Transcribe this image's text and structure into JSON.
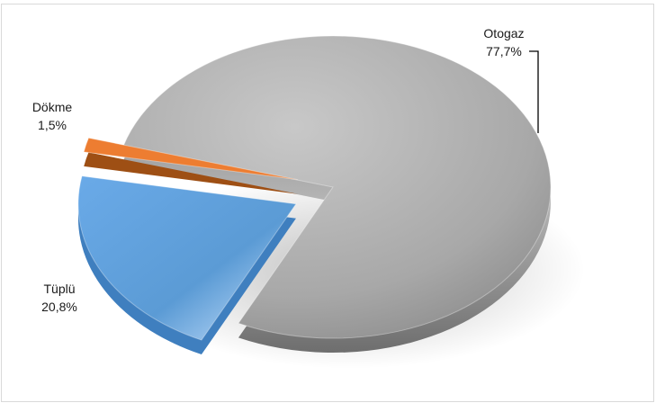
{
  "chart_data": {
    "type": "pie",
    "style": "3d-exploded",
    "categories": [
      "Otogaz",
      "Tüplü",
      "Dökme"
    ],
    "values": [
      77.7,
      20.8,
      1.5
    ],
    "value_labels": [
      "77,7%",
      "20,8%",
      "1,5%"
    ],
    "colors": [
      "#a6a6a6",
      "#5b9bd5",
      "#ed7d31"
    ],
    "title": "",
    "legend": "none",
    "data_labels": "category-and-percent"
  }
}
